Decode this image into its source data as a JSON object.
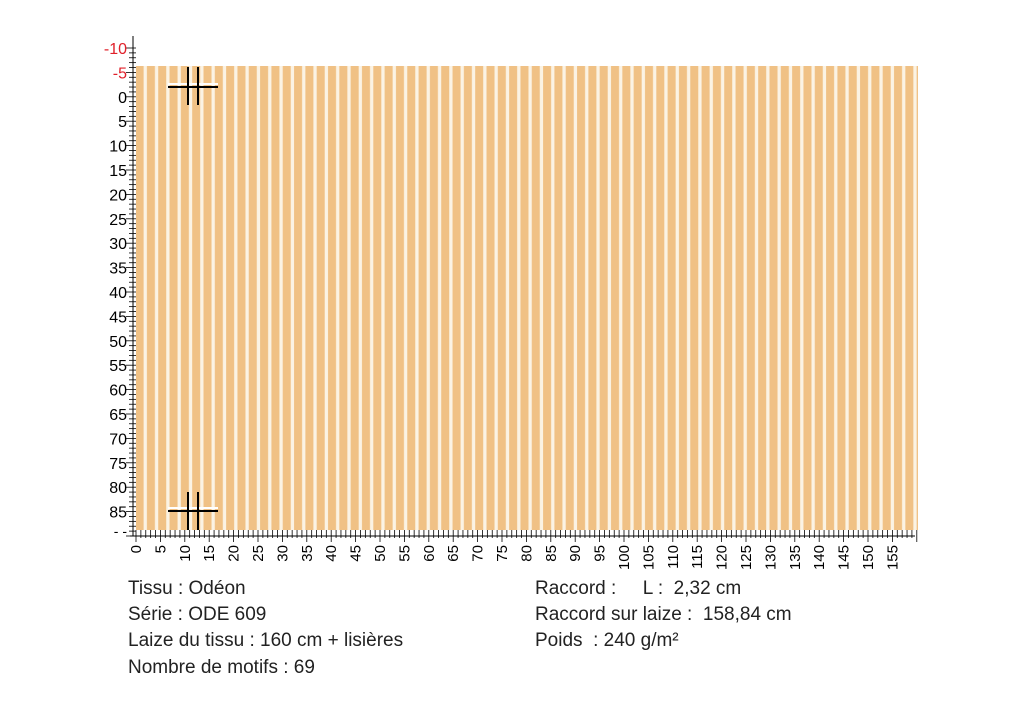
{
  "vertical_ruler": {
    "labels": [
      "-10",
      "-5",
      "0",
      "5",
      "10",
      "15",
      "20",
      "25",
      "30",
      "35",
      "40",
      "45",
      "50",
      "55",
      "60",
      "65",
      "70",
      "75",
      "80",
      "85"
    ],
    "end_mark": "- -"
  },
  "horizontal_ruler": {
    "labels": [
      "0",
      "5",
      "10",
      "15",
      "20",
      "25",
      "30",
      "35",
      "40",
      "45",
      "50",
      "55",
      "60",
      "65",
      "70",
      "75",
      "80",
      "85",
      "90",
      "95",
      "100",
      "105",
      "110",
      "115",
      "120",
      "125",
      "130",
      "135",
      "140",
      "145",
      "150",
      "155"
    ]
  },
  "info_left": [
    "Tissu : Odéon",
    "Série : ODE 609",
    "Laize du tissu : 160 cm + lisières",
    "Nombre de motifs : 69"
  ],
  "info_right": [
    "Raccord :     L :  2,32 cm",
    "Raccord sur laize :  158,84 cm",
    "Poids  : 240 g/m²"
  ]
}
